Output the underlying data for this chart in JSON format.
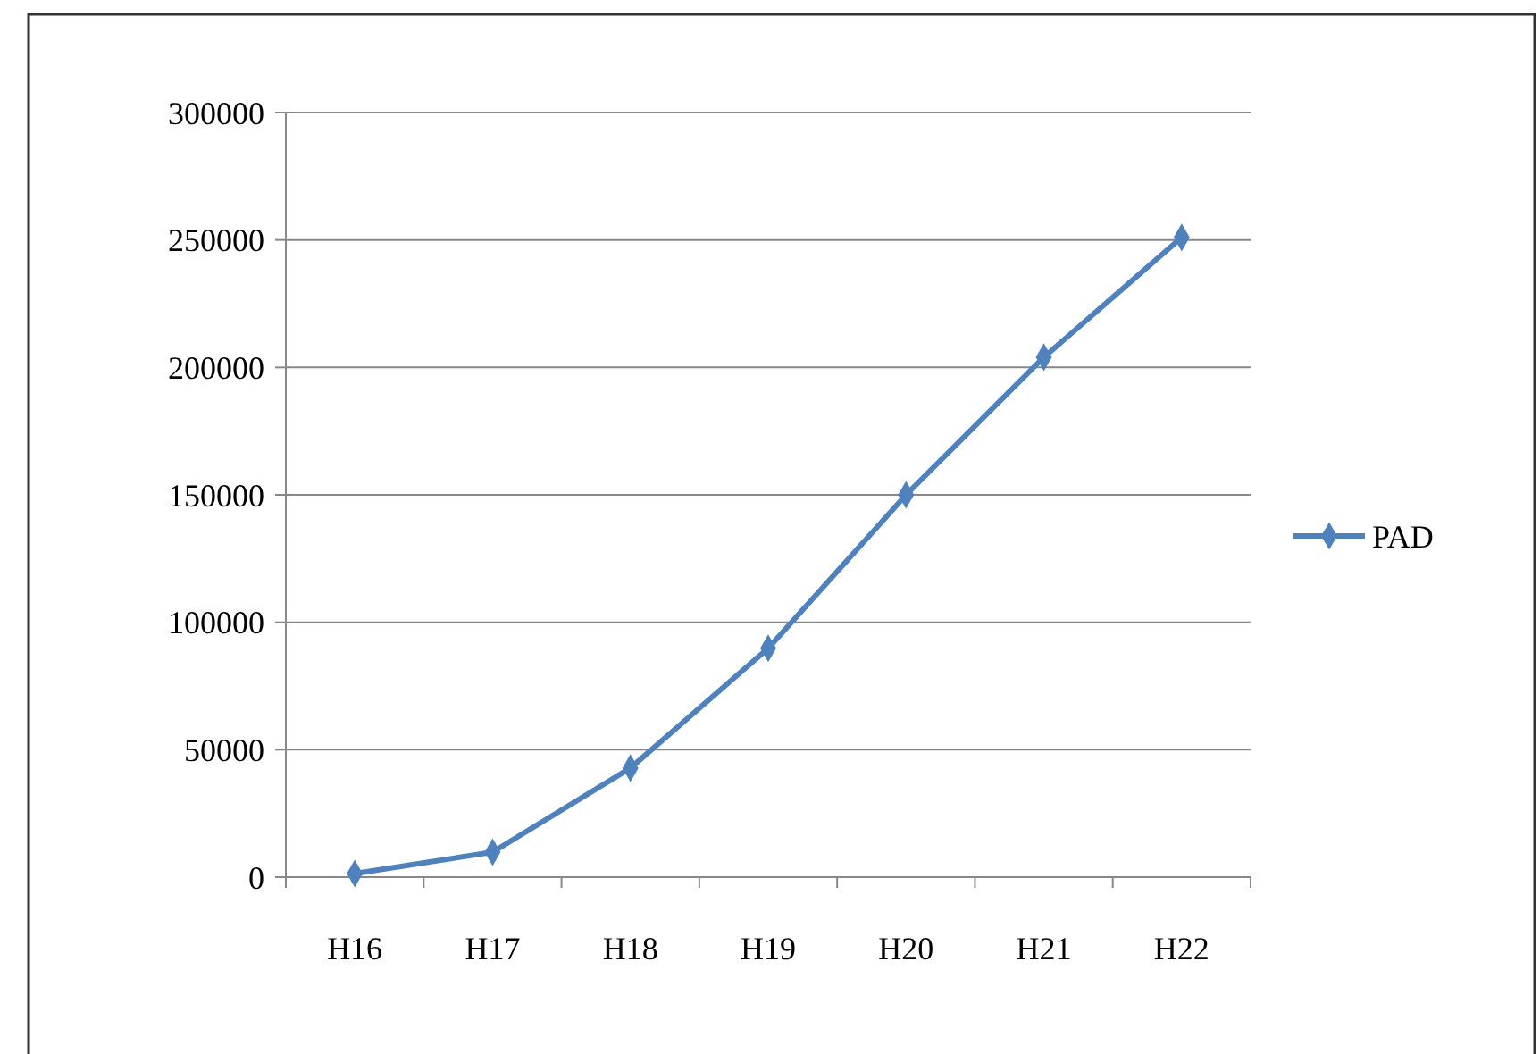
{
  "chart_data": {
    "type": "line",
    "categories": [
      "H16",
      "H17",
      "H18",
      "H19",
      "H20",
      "H21",
      "H22"
    ],
    "series": [
      {
        "name": "PAD",
        "color": "#4f81bd",
        "values": [
          1400,
          9800,
          42800,
          89800,
          150000,
          204000,
          251000
        ]
      }
    ],
    "ylim": [
      0,
      300000
    ],
    "yticks": [
      0,
      50000,
      100000,
      150000,
      200000,
      250000,
      300000
    ],
    "grid": "y",
    "legend": "right",
    "marker": "diamond",
    "line_style": "solid"
  }
}
